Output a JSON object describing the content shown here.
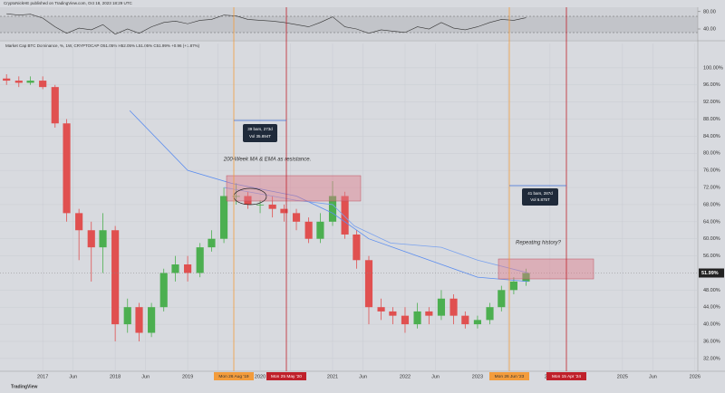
{
  "header": {
    "publisher": "CryptoNickHE published on TradingView.com, Oct 18, 2023 18:29 UTC",
    "symbol": "Market Cap BTC Dominance, %, 1W, CRYPTOCAP  O51.05% H52.05% L51.05% C51.99% +0.96 (+1.87%)",
    "brand": "TradingView"
  },
  "chart_data": {
    "type": "candlestick",
    "x": [
      2016.5,
      2016.67,
      2016.83,
      2017,
      2017.17,
      2017.33,
      2017.5,
      2017.67,
      2017.83,
      2018,
      2018.17,
      2018.33,
      2018.5,
      2018.67,
      2018.83,
      2019,
      2019.17,
      2019.33,
      2019.5,
      2019.67,
      2019.83,
      2020,
      2020.17,
      2020.33,
      2020.5,
      2020.67,
      2020.83,
      2021,
      2021.17,
      2021.33,
      2021.5,
      2021.67,
      2021.83,
      2022,
      2022.17,
      2022.33,
      2022.5,
      2022.67,
      2022.83,
      2023,
      2023.17,
      2023.33,
      2023.5,
      2023.67
    ],
    "open": [
      97.5,
      97,
      96.5,
      97,
      95.5,
      87,
      66,
      62,
      58,
      62,
      40,
      44,
      38,
      44,
      52,
      54,
      52,
      58,
      60,
      70,
      70,
      68,
      68,
      67,
      66,
      64,
      60,
      64,
      70,
      61,
      55,
      44,
      43,
      42,
      40,
      43,
      42,
      46,
      42,
      40,
      41,
      44,
      48,
      50
    ],
    "high": [
      98.5,
      98,
      98,
      98,
      96,
      88,
      67,
      64,
      66,
      63,
      46,
      45,
      45,
      53,
      56,
      56,
      59,
      62,
      72,
      73,
      71,
      69,
      70,
      68,
      67,
      65,
      66,
      73.5,
      71,
      62,
      56,
      46,
      44,
      44,
      45,
      44,
      48,
      47,
      43,
      42,
      45,
      49,
      51,
      53
    ],
    "low": [
      96,
      95.5,
      96,
      95,
      86,
      64,
      55,
      50,
      52,
      36,
      38,
      36,
      37,
      43,
      50,
      50,
      51,
      57,
      59,
      68,
      67,
      66,
      65,
      64,
      62,
      59,
      59,
      63,
      60,
      53,
      40,
      41,
      40,
      38,
      39,
      40,
      41,
      40,
      39,
      39,
      40,
      43,
      47,
      49
    ],
    "close": [
      97,
      96.5,
      97,
      95.5,
      87,
      66,
      62,
      58,
      62,
      40,
      44,
      38,
      44,
      52,
      54,
      52,
      58,
      60,
      70,
      70,
      68,
      68,
      67,
      66,
      64,
      60,
      64,
      70,
      61,
      55,
      44,
      43,
      42,
      40,
      43,
      42,
      46,
      42,
      40,
      41,
      44,
      48,
      50,
      51.99
    ],
    "last_label": "51.99%",
    "up_color": "#4caf50",
    "down_color": "#e05050",
    "lines": [
      {
        "color": "#5b8def",
        "x": [
          2018.2,
          2019,
          2019.6,
          2020.5,
          2021,
          2021.5,
          2022,
          2022.5,
          2023,
          2023.7
        ],
        "values": [
          90,
          76,
          73,
          70,
          66,
          60,
          57,
          54,
          51,
          50
        ]
      },
      {
        "color": "#7aa2ee",
        "x": [
          2019.5,
          2020.5,
          2021,
          2021.3,
          2021.8,
          2022.5,
          2023,
          2023.7
        ],
        "values": [
          72,
          69,
          68,
          63,
          59,
          58,
          55,
          52
        ]
      }
    ],
    "xlim": [
      2016.41,
      2026.04
    ],
    "xticks": [
      2017,
      {
        "value": 2017.42,
        "label": "Jun"
      },
      2018,
      {
        "value": 2018.42,
        "label": "Jun"
      },
      2019,
      {
        "value": 2019.42,
        "label": "Jun"
      },
      2020,
      {
        "value": 2020.42,
        "label": "Jun"
      },
      2021,
      {
        "value": 2021.42,
        "label": "Jun"
      },
      2022,
      {
        "value": 2022.42,
        "label": "Jun"
      },
      2023,
      {
        "value": 2023.42,
        "label": "Jun"
      },
      2024,
      2025,
      {
        "value": 2025.42,
        "label": "Jun"
      },
      2026
    ],
    "ylim": [
      29,
      105.7
    ],
    "yticks": [
      {
        "value": 100,
        "label": "100.00%"
      },
      {
        "value": 96,
        "label": "96.00%"
      },
      {
        "value": 92,
        "label": "92.00%"
      },
      {
        "value": 88,
        "label": "88.00%"
      },
      {
        "value": 84,
        "label": "84.00%"
      },
      {
        "value": 80,
        "label": "80.00%"
      },
      {
        "value": 76,
        "label": "76.00%"
      },
      {
        "value": 72,
        "label": "72.00%"
      },
      {
        "value": 68,
        "label": "68.00%"
      },
      {
        "value": 64,
        "label": "64.00%"
      },
      {
        "value": 60,
        "label": "60.00%"
      },
      {
        "value": 56,
        "label": "56.00%"
      },
      {
        "value": 48,
        "label": "48.00%"
      },
      {
        "value": 44,
        "label": "44.00%"
      },
      {
        "value": 40,
        "label": "40.00%"
      },
      {
        "value": 36,
        "label": "36.00%"
      },
      {
        "value": 32,
        "label": "32.00%"
      }
    ],
    "rsi": {
      "values": [
        75,
        72,
        74,
        65,
        45,
        30,
        42,
        38,
        50,
        28,
        40,
        30,
        45,
        55,
        58,
        52,
        60,
        62,
        72,
        70,
        62,
        60,
        58,
        55,
        50,
        45,
        55,
        68,
        45,
        40,
        30,
        38,
        35,
        32,
        45,
        40,
        55,
        42,
        38,
        45,
        55,
        62,
        60,
        66
      ],
      "color": "#333333",
      "ylim": [
        15,
        90
      ],
      "yticks": [
        {
          "value": 80,
          "label": "80.00"
        },
        {
          "value": 40,
          "label": "40.00"
        }
      ]
    },
    "annotations": {
      "measure_1": [
        "39 bars, 273d",
        "Vol 35.894T"
      ],
      "measure_2": [
        "41 bars, 287d",
        "Vol 6.875T"
      ],
      "note_1": "200-Week MA & EMA as resistance.",
      "note_2": "Repeating history?",
      "dates": [
        "Mon 26 Aug '19",
        "Mon 25 May '20",
        "Mon 26 Jun '23",
        "Mon 15 Apr '24"
      ]
    }
  }
}
